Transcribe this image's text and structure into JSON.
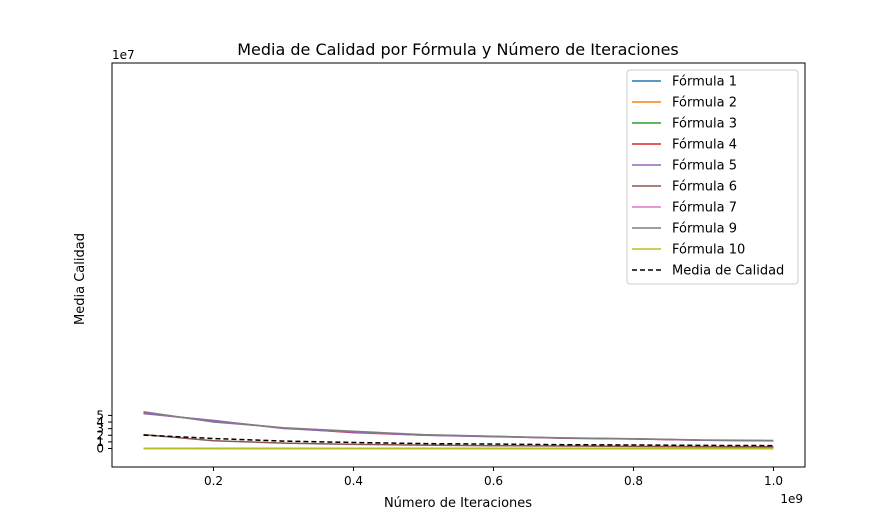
{
  "chart_data": {
    "type": "line",
    "title": "Media de Calidad por Fórmula y Número de Iteraciones",
    "xlabel": "Número de Iteraciones",
    "ylabel": "Media Calidad",
    "x_offset_label": "1e9",
    "y_offset_label": "1e7",
    "x": [
      100000000,
      200000000,
      300000000,
      400000000,
      500000000,
      600000000,
      700000000,
      800000000,
      900000000,
      1000000000
    ],
    "xlim": [
      0.055,
      1.045
    ],
    "ylim": [
      -2.8,
      58.3
    ],
    "x_ticks": [
      0.2,
      0.4,
      0.6,
      0.8,
      1.0
    ],
    "x_tick_labels": [
      "0.2",
      "0.4",
      "0.6",
      "0.8",
      "1.0"
    ],
    "y_ticks": [
      0,
      1,
      2,
      3,
      4,
      5
    ],
    "y_tick_labels": [
      "0",
      "1",
      "2",
      "3",
      "4",
      "5"
    ],
    "grid": false,
    "legend_position": "top-right",
    "series": [
      {
        "name": "Fórmula 1",
        "color": "#1f77b4",
        "dashed": false,
        "values": [
          200000,
          100000,
          100000,
          150000,
          100000,
          100000,
          80000,
          80000,
          80000,
          80000
        ]
      },
      {
        "name": "Fórmula 2",
        "color": "#ff7f0e",
        "dashed": false,
        "values": [
          250000,
          150000,
          120000,
          200000,
          150000,
          120000,
          100000,
          90000,
          90000,
          90000
        ]
      },
      {
        "name": "Fórmula 3",
        "color": "#2ca02c",
        "dashed": false,
        "values": [
          150000,
          90000,
          70000,
          100000,
          80000,
          70000,
          60000,
          60000,
          60000,
          60000
        ]
      },
      {
        "name": "Fórmula 4",
        "color": "#d62728",
        "dashed": false,
        "values": [
          53500000,
          41500000,
          31000000,
          24000000,
          20200000,
          18300000,
          15500000,
          14300000,
          12600000,
          11500000
        ]
      },
      {
        "name": "Fórmula 5",
        "color": "#9467bd",
        "dashed": false,
        "values": [
          52800000,
          42500000,
          30200000,
          24800000,
          20100000,
          17800000,
          15800000,
          14500000,
          12500000,
          11800000
        ]
      },
      {
        "name": "Fórmula 6",
        "color": "#8c564b",
        "dashed": false,
        "values": [
          21000000,
          11600000,
          8100000,
          6200000,
          5100000,
          4200000,
          3700000,
          3200000,
          2800000,
          2600000
        ]
      },
      {
        "name": "Fórmula 7",
        "color": "#e377c2",
        "dashed": false,
        "values": [
          100000,
          60000,
          50000,
          70000,
          60000,
          50000,
          40000,
          40000,
          40000,
          40000
        ]
      },
      {
        "name": "Fórmula 9",
        "color": "#7f7f7f",
        "dashed": false,
        "values": [
          55600000,
          40000000,
          31500000,
          26000000,
          21000000,
          18400000,
          16000000,
          14800000,
          12800000,
          12100000
        ]
      },
      {
        "name": "Fórmula 10",
        "color": "#bcbd22",
        "dashed": false,
        "values": [
          300000,
          200000,
          150000,
          250000,
          200000,
          150000,
          120000,
          110000,
          100000,
          100000
        ]
      },
      {
        "name": "Media de Calidad",
        "color": "#000000",
        "dashed": true,
        "values": [
          20200000,
          15100000,
          11200000,
          9000000,
          7400000,
          6600000,
          5700000,
          5200000,
          4600000,
          4300000
        ]
      }
    ]
  }
}
